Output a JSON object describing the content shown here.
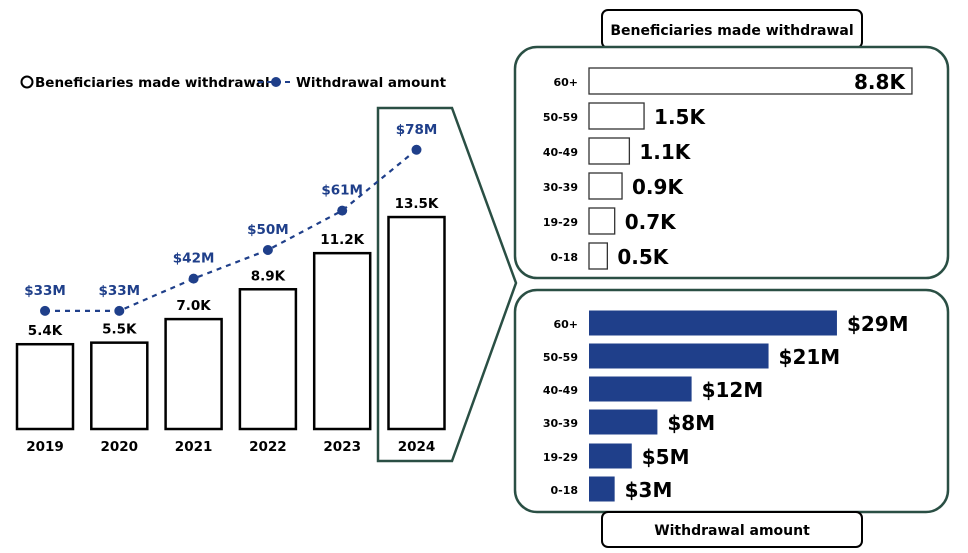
{
  "colors": {
    "accent": "#1f3f8a",
    "frame": "#2a4f44",
    "bar_outline": "#000000"
  },
  "chart_data": [
    {
      "type": "bar+line",
      "legend": {
        "placement": "top-left",
        "entries": [
          "Beneficiaries made withdrawal",
          "Withdrawal amount"
        ]
      },
      "categories": [
        "2019",
        "2020",
        "2021",
        "2022",
        "2023",
        "2024"
      ],
      "series": [
        {
          "name": "Beneficiaries made withdrawal",
          "type": "bar",
          "values": [
            5.4,
            5.5,
            7.0,
            8.9,
            11.2,
            13.5
          ],
          "labels": [
            "5.4K",
            "5.5K",
            "7.0K",
            "8.9K",
            "11.2K",
            "13.5K"
          ]
        },
        {
          "name": "Withdrawal amount",
          "type": "line",
          "values": [
            33,
            33,
            42,
            50,
            61,
            78
          ],
          "labels": [
            "$33M",
            "$33M",
            "$42M",
            "$50M",
            "$61M",
            "$78M"
          ]
        }
      ],
      "highlighted_category": "2024"
    },
    {
      "type": "bar",
      "orientation": "horizontal",
      "title": "Beneficiaries made withdrawal",
      "categories": [
        "60+",
        "50-59",
        "40-49",
        "30-39",
        "19-29",
        "0-18"
      ],
      "values": [
        8.8,
        1.5,
        1.1,
        0.9,
        0.7,
        0.5
      ],
      "labels": [
        "8.8K",
        "1.5K",
        "1.1K",
        "0.9K",
        "0.7K",
        "0.5K"
      ]
    },
    {
      "type": "bar",
      "orientation": "horizontal",
      "title": "Withdrawal amount",
      "categories": [
        "60+",
        "50-59",
        "40-49",
        "30-39",
        "19-29",
        "0-18"
      ],
      "values": [
        29,
        21,
        12,
        8,
        5,
        3
      ],
      "labels": [
        "$29M",
        "$21M",
        "$12M",
        "$8M",
        "$5M",
        "$3M"
      ]
    }
  ]
}
